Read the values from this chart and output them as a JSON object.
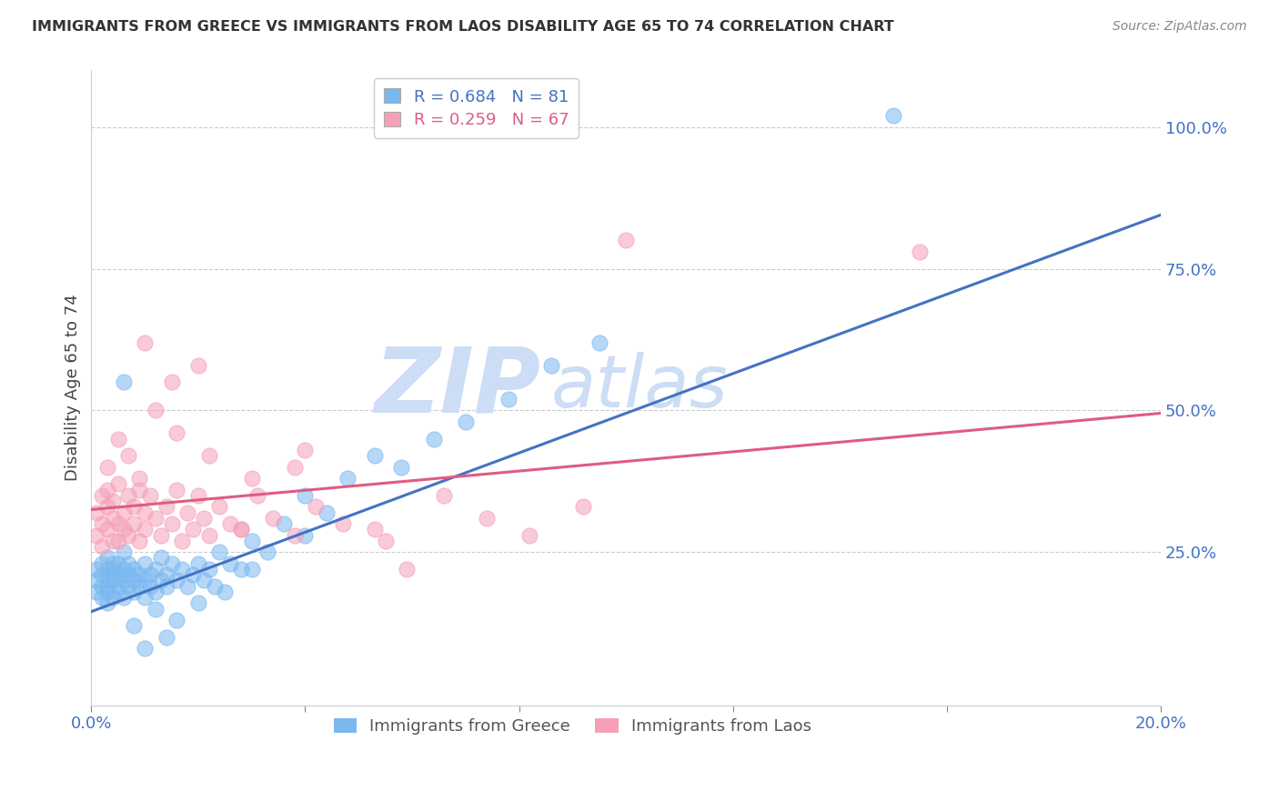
{
  "title": "IMMIGRANTS FROM GREECE VS IMMIGRANTS FROM LAOS DISABILITY AGE 65 TO 74 CORRELATION CHART",
  "source": "Source: ZipAtlas.com",
  "ylabel": "Disability Age 65 to 74",
  "xlim": [
    0.0,
    0.2
  ],
  "ylim": [
    -0.02,
    1.1
  ],
  "ytick_labels_right": [
    "25.0%",
    "50.0%",
    "75.0%",
    "100.0%"
  ],
  "ytick_vals_right": [
    0.25,
    0.5,
    0.75,
    1.0
  ],
  "greece_color": "#7ab8f0",
  "laos_color": "#f5a0b8",
  "greece_line_color": "#4472c4",
  "laos_line_color": "#e05c80",
  "greece_R": 0.684,
  "greece_N": 81,
  "laos_R": 0.259,
  "laos_N": 67,
  "legend_label_greece": "Immigrants from Greece",
  "legend_label_laos": "Immigrants from Laos",
  "watermark": "ZIPAtlas",
  "watermark_color": "#ccddf5",
  "background_color": "#ffffff",
  "greece_trend_x": [
    0.0,
    0.2
  ],
  "greece_trend_y": [
    0.145,
    0.845
  ],
  "laos_trend_x": [
    0.0,
    0.2
  ],
  "laos_trend_y": [
    0.325,
    0.495
  ],
  "grid_color": "#cccccc",
  "grid_style": "--",
  "greece_scatter_x": [
    0.001,
    0.001,
    0.001,
    0.002,
    0.002,
    0.002,
    0.002,
    0.003,
    0.003,
    0.003,
    0.003,
    0.003,
    0.003,
    0.004,
    0.004,
    0.004,
    0.004,
    0.004,
    0.005,
    0.005,
    0.005,
    0.005,
    0.006,
    0.006,
    0.006,
    0.006,
    0.007,
    0.007,
    0.007,
    0.008,
    0.008,
    0.008,
    0.009,
    0.009,
    0.01,
    0.01,
    0.01,
    0.011,
    0.011,
    0.012,
    0.012,
    0.013,
    0.013,
    0.014,
    0.014,
    0.015,
    0.016,
    0.017,
    0.018,
    0.019,
    0.02,
    0.021,
    0.022,
    0.023,
    0.024,
    0.026,
    0.028,
    0.03,
    0.033,
    0.036,
    0.04,
    0.044,
    0.048,
    0.053,
    0.058,
    0.064,
    0.07,
    0.078,
    0.086,
    0.095,
    0.006,
    0.008,
    0.01,
    0.012,
    0.014,
    0.016,
    0.02,
    0.025,
    0.03,
    0.04,
    0.15
  ],
  "greece_scatter_y": [
    0.22,
    0.18,
    0.2,
    0.19,
    0.21,
    0.23,
    0.17,
    0.2,
    0.22,
    0.18,
    0.24,
    0.16,
    0.19,
    0.21,
    0.23,
    0.17,
    0.2,
    0.22,
    0.18,
    0.21,
    0.19,
    0.23,
    0.17,
    0.2,
    0.22,
    0.25,
    0.19,
    0.21,
    0.23,
    0.18,
    0.2,
    0.22,
    0.19,
    0.21,
    0.17,
    0.2,
    0.23,
    0.19,
    0.21,
    0.18,
    0.22,
    0.2,
    0.24,
    0.19,
    0.21,
    0.23,
    0.2,
    0.22,
    0.19,
    0.21,
    0.23,
    0.2,
    0.22,
    0.19,
    0.25,
    0.23,
    0.22,
    0.27,
    0.25,
    0.3,
    0.35,
    0.32,
    0.38,
    0.42,
    0.4,
    0.45,
    0.48,
    0.52,
    0.58,
    0.62,
    0.55,
    0.12,
    0.08,
    0.15,
    0.1,
    0.13,
    0.16,
    0.18,
    0.22,
    0.28,
    1.02
  ],
  "laos_scatter_x": [
    0.001,
    0.001,
    0.002,
    0.002,
    0.002,
    0.003,
    0.003,
    0.003,
    0.004,
    0.004,
    0.004,
    0.005,
    0.005,
    0.005,
    0.006,
    0.006,
    0.007,
    0.007,
    0.008,
    0.008,
    0.009,
    0.009,
    0.01,
    0.01,
    0.011,
    0.012,
    0.013,
    0.014,
    0.015,
    0.016,
    0.017,
    0.018,
    0.019,
    0.02,
    0.021,
    0.022,
    0.024,
    0.026,
    0.028,
    0.031,
    0.034,
    0.038,
    0.042,
    0.047,
    0.053,
    0.059,
    0.066,
    0.074,
    0.082,
    0.092,
    0.003,
    0.005,
    0.007,
    0.009,
    0.012,
    0.016,
    0.022,
    0.03,
    0.04,
    0.055,
    0.01,
    0.015,
    0.02,
    0.028,
    0.038,
    0.1,
    0.155
  ],
  "laos_scatter_y": [
    0.32,
    0.28,
    0.35,
    0.3,
    0.26,
    0.33,
    0.29,
    0.36,
    0.31,
    0.27,
    0.34,
    0.3,
    0.37,
    0.27,
    0.32,
    0.29,
    0.35,
    0.28,
    0.33,
    0.3,
    0.36,
    0.27,
    0.32,
    0.29,
    0.35,
    0.31,
    0.28,
    0.33,
    0.3,
    0.36,
    0.27,
    0.32,
    0.29,
    0.35,
    0.31,
    0.28,
    0.33,
    0.3,
    0.29,
    0.35,
    0.31,
    0.28,
    0.33,
    0.3,
    0.29,
    0.22,
    0.35,
    0.31,
    0.28,
    0.33,
    0.4,
    0.45,
    0.42,
    0.38,
    0.5,
    0.46,
    0.42,
    0.38,
    0.43,
    0.27,
    0.62,
    0.55,
    0.58,
    0.29,
    0.4,
    0.8,
    0.78
  ]
}
